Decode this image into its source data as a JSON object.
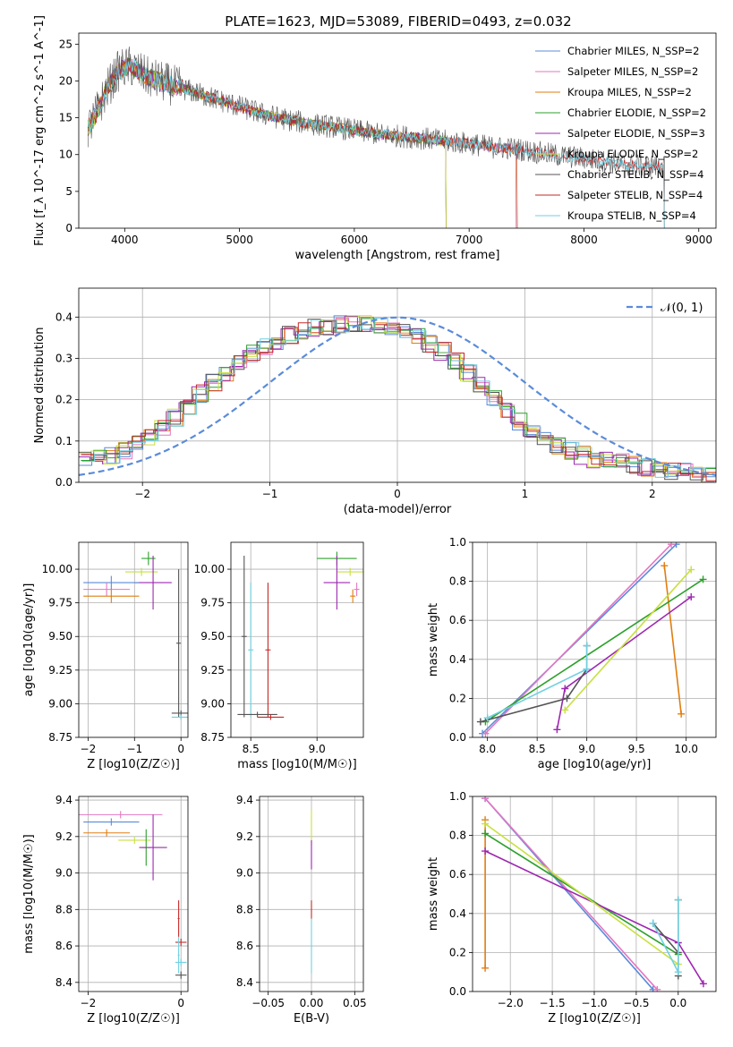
{
  "figure": {
    "title": "PLATE=1623, MJD=53089, FIBERID=0493, z=0.032"
  },
  "chart_data": [
    {
      "id": "spectrum",
      "type": "line",
      "xlabel": "wavelength [Angstrom, rest frame]",
      "ylabel": "Flux [f_λ 10^-17 erg cm^-2 s^-1 A^-1]",
      "xlim": [
        3600,
        9150
      ],
      "ylim": [
        0,
        26.5
      ],
      "xticks": [
        4000,
        5000,
        6000,
        7000,
        8000,
        9000
      ],
      "yticks": [
        0,
        5,
        10,
        15,
        20,
        25
      ],
      "grid": false,
      "legend_position": "top-right",
      "series": [
        {
          "name": "Chabrier MILES, N_SSP=2",
          "color": "#5b8bd9",
          "x_range": [
            3680,
            7410
          ]
        },
        {
          "name": "Salpeter MILES, N_SSP=2",
          "color": "#e377c2",
          "x_range": [
            3680,
            7410
          ]
        },
        {
          "name": "Kroupa MILES, N_SSP=2",
          "color": "#e07d10",
          "x_range": [
            3680,
            7420
          ]
        },
        {
          "name": "Chabrier ELODIE, N_SSP=2",
          "color": "#2ca02c",
          "x_range": [
            3680,
            6800
          ]
        },
        {
          "name": "Salpeter ELODIE, N_SSP=3",
          "color": "#9d27b0",
          "x_range": [
            3680,
            6800
          ]
        },
        {
          "name": "Kroupa ELODIE, N_SSP=2",
          "color": "#c8e040",
          "x_range": [
            3680,
            6800
          ]
        },
        {
          "name": "Chabrier STELIB, N_SSP=4",
          "color": "#555555",
          "x_range": [
            3680,
            8700
          ]
        },
        {
          "name": "Salpeter STELIB, N_SSP=4",
          "color": "#c62828",
          "x_range": [
            3680,
            8700
          ]
        },
        {
          "name": "Kroupa STELIB, N_SSP=4",
          "color": "#6fd0e0",
          "x_range": [
            3680,
            8700
          ]
        }
      ],
      "continuum": {
        "x": [
          3680,
          3750,
          3850,
          3950,
          4050,
          4200,
          4400,
          4600,
          4800,
          5000,
          5200,
          5400,
          5600,
          5800,
          6000,
          6200,
          6400,
          6600,
          6800,
          7000,
          7200,
          7400,
          7600,
          7800,
          8000,
          8200,
          8400,
          8700
        ],
        "y": [
          13.5,
          15.5,
          19.0,
          21.5,
          22.0,
          20.5,
          19.5,
          18.5,
          17.5,
          16.5,
          15.5,
          14.8,
          14.2,
          13.8,
          13.3,
          12.8,
          12.5,
          12.2,
          11.8,
          11.5,
          11.0,
          10.8,
          10.3,
          9.8,
          9.5,
          9.0,
          8.6,
          8.4
        ]
      }
    },
    {
      "id": "residuals",
      "type": "line",
      "xlabel": "(data-model)/error",
      "ylabel": "Normed distribution",
      "xlim": [
        -2.5,
        2.5
      ],
      "ylim": [
        0,
        0.47
      ],
      "xticks": [
        -2,
        -1,
        0,
        1,
        2
      ],
      "yticks": [
        0.0,
        0.1,
        0.2,
        0.3,
        0.4
      ],
      "grid": true,
      "legend_position": "top-right",
      "reference": {
        "name": "𝒩(0, 1)",
        "mean": 0,
        "sigma": 1,
        "color": "#5b8bd9"
      },
      "histogram_envelope": {
        "x": [
          -2.5,
          -2.3,
          -2.1,
          -1.9,
          -1.7,
          -1.5,
          -1.3,
          -1.1,
          -0.9,
          -0.7,
          -0.5,
          -0.3,
          -0.1,
          0.1,
          0.3,
          0.5,
          0.7,
          0.9,
          1.1,
          1.3,
          1.5,
          1.7,
          1.9,
          2.1,
          2.3,
          2.5
        ],
        "y": [
          0.05,
          0.06,
          0.08,
          0.12,
          0.17,
          0.23,
          0.28,
          0.32,
          0.35,
          0.37,
          0.38,
          0.385,
          0.38,
          0.36,
          0.33,
          0.28,
          0.22,
          0.16,
          0.11,
          0.08,
          0.06,
          0.05,
          0.04,
          0.03,
          0.025,
          0.02
        ]
      },
      "series_colors": [
        "#5b8bd9",
        "#e377c2",
        "#e07d10",
        "#2ca02c",
        "#9d27b0",
        "#c8e040",
        "#555555",
        "#c62828",
        "#6fd0e0"
      ]
    },
    {
      "id": "age-vs-Z",
      "type": "scatter",
      "xlabel": "Z [log10(Z/Z☉)]",
      "ylabel": "age  [log10(age/yr)]",
      "xlim": [
        -2.2,
        0.15
      ],
      "ylim": [
        8.75,
        10.2
      ],
      "xticks": [
        -2,
        -1,
        0
      ],
      "yticks": [
        8.75,
        9.0,
        9.25,
        9.5,
        9.75,
        10.0
      ],
      "grid": true,
      "points": [
        {
          "x": -0.7,
          "y": 10.08,
          "xerr": 0.15,
          "yerr": 0.05,
          "color": "#2ca02c"
        },
        {
          "x": -0.85,
          "y": 9.98,
          "xerr": 0.35,
          "yerr": 0.03,
          "color": "#c8e040"
        },
        {
          "x": -0.6,
          "y": 9.9,
          "xerr": 0.4,
          "yerr": 0.2,
          "color": "#9d27b0"
        },
        {
          "x": -1.5,
          "y": 9.9,
          "xerr": 0.6,
          "yerr": 0.05,
          "color": "#5b8bd9"
        },
        {
          "x": -1.6,
          "y": 9.85,
          "xerr": 0.5,
          "yerr": 0.05,
          "color": "#e377c2"
        },
        {
          "x": -1.5,
          "y": 9.8,
          "xerr": 0.6,
          "yerr": 0.05,
          "color": "#e07d10"
        },
        {
          "x": -0.05,
          "y": 9.45,
          "xerr": 0.05,
          "yerr": 0.55,
          "color": "#555555"
        },
        {
          "x": 0.0,
          "y": 8.93,
          "xerr": 0.2,
          "yerr": 0.02,
          "color": "#555555"
        },
        {
          "x": 0.0,
          "y": 8.9,
          "xerr": 0.2,
          "yerr": 0.02,
          "color": "#6fd0e0"
        }
      ]
    },
    {
      "id": "age-vs-mass",
      "type": "scatter",
      "xlabel": "mass [log10(M/M☉)]",
      "ylabel": "",
      "xlim": [
        8.35,
        9.35
      ],
      "ylim": [
        8.75,
        10.2
      ],
      "xticks": [
        8.5,
        9.0
      ],
      "yticks": [
        8.75,
        9.0,
        9.25,
        9.5,
        9.75,
        10.0
      ],
      "grid": true,
      "points": [
        {
          "x": 9.15,
          "y": 10.08,
          "xerr": 0.15,
          "yerr": 0.05,
          "color": "#2ca02c"
        },
        {
          "x": 9.25,
          "y": 9.98,
          "xerr": 0.1,
          "yerr": 0.03,
          "color": "#c8e040"
        },
        {
          "x": 9.15,
          "y": 9.9,
          "xerr": 0.1,
          "yerr": 0.2,
          "color": "#9d27b0"
        },
        {
          "x": 9.27,
          "y": 9.8,
          "xerr": 0.02,
          "yerr": 0.05,
          "color": "#e07d10"
        },
        {
          "x": 9.3,
          "y": 9.85,
          "xerr": 0.02,
          "yerr": 0.05,
          "color": "#e377c2"
        },
        {
          "x": 8.45,
          "y": 9.5,
          "xerr": 0.02,
          "yerr": 0.6,
          "color": "#555555"
        },
        {
          "x": 8.5,
          "y": 9.4,
          "xerr": 0.02,
          "yerr": 0.5,
          "color": "#6fd0e0"
        },
        {
          "x": 8.63,
          "y": 9.4,
          "xerr": 0.02,
          "yerr": 0.5,
          "color": "#c62828"
        },
        {
          "x": 8.55,
          "y": 8.92,
          "xerr": 0.15,
          "yerr": 0.02,
          "color": "#555555"
        },
        {
          "x": 8.65,
          "y": 8.9,
          "xerr": 0.1,
          "yerr": 0.02,
          "color": "#c62828"
        }
      ]
    },
    {
      "id": "weight-vs-age",
      "type": "line",
      "xlabel": "age  [log10(age/yr)]",
      "ylabel": "mass weight",
      "xlim": [
        7.85,
        10.3
      ],
      "ylim": [
        0,
        1
      ],
      "xticks": [
        8.0,
        8.5,
        9.0,
        9.5,
        10.0
      ],
      "yticks": [
        0.0,
        0.2,
        0.4,
        0.6,
        0.8,
        1.0
      ],
      "grid": true,
      "series": [
        {
          "color": "#5b8bd9",
          "x": [
            7.95,
            9.9
          ],
          "y": [
            0.02,
            0.99
          ]
        },
        {
          "color": "#e377c2",
          "x": [
            7.98,
            9.85
          ],
          "y": [
            0.02,
            0.99
          ]
        },
        {
          "color": "#e07d10",
          "x": [
            9.78,
            9.95
          ],
          "y": [
            0.88,
            0.12
          ]
        },
        {
          "color": "#2ca02c",
          "x": [
            7.98,
            10.17
          ],
          "y": [
            0.08,
            0.81
          ]
        },
        {
          "color": "#9d27b0",
          "x": [
            8.7,
            8.78,
            10.05
          ],
          "y": [
            0.04,
            0.25,
            0.72
          ]
        },
        {
          "color": "#c8e040",
          "x": [
            8.78,
            10.05
          ],
          "y": [
            0.14,
            0.86
          ]
        },
        {
          "color": "#555555",
          "x": [
            7.93,
            8.8,
            9.0,
            9.0
          ],
          "y": [
            0.08,
            0.2,
            0.35,
            0.47
          ]
        },
        {
          "color": "#6fd0e0",
          "x": [
            8.0,
            9.0,
            9.0
          ],
          "y": [
            0.1,
            0.35,
            0.47
          ]
        }
      ]
    },
    {
      "id": "mass-vs-Z",
      "type": "scatter",
      "xlabel": "Z [log10(Z/Z☉)]",
      "ylabel": "mass [log10(M/M☉)]",
      "xlim": [
        -2.2,
        0.15
      ],
      "ylim": [
        8.35,
        9.42
      ],
      "xticks": [
        -2,
        0
      ],
      "yticks": [
        8.4,
        8.6,
        8.8,
        9.0,
        9.2,
        9.4
      ],
      "grid": true,
      "points": [
        {
          "x": -1.3,
          "y": 9.32,
          "xerr": 0.9,
          "yerr": 0.02,
          "color": "#e377c2"
        },
        {
          "x": -1.5,
          "y": 9.28,
          "xerr": 0.6,
          "yerr": 0.02,
          "color": "#5b8bd9"
        },
        {
          "x": -1.6,
          "y": 9.22,
          "xerr": 0.5,
          "yerr": 0.02,
          "color": "#e07d10"
        },
        {
          "x": -1.0,
          "y": 9.18,
          "xerr": 0.35,
          "yerr": 0.02,
          "color": "#c8e040"
        },
        {
          "x": -0.75,
          "y": 9.14,
          "xerr": 0.1,
          "yerr": 0.1,
          "color": "#2ca02c"
        },
        {
          "x": -0.6,
          "y": 9.14,
          "xerr": 0.3,
          "yerr": 0.18,
          "color": "#9d27b0"
        },
        {
          "x": -0.05,
          "y": 8.75,
          "xerr": 0.02,
          "yerr": 0.1,
          "color": "#c62828"
        },
        {
          "x": 0.0,
          "y": 8.62,
          "xerr": 0.12,
          "yerr": 0.02,
          "color": "#c62828"
        },
        {
          "x": -0.05,
          "y": 8.55,
          "xerr": 0.02,
          "yerr": 0.1,
          "color": "#6fd0e0"
        },
        {
          "x": 0.0,
          "y": 8.51,
          "xerr": 0.12,
          "yerr": 0.02,
          "color": "#6fd0e0"
        },
        {
          "x": 0.0,
          "y": 8.44,
          "xerr": 0.12,
          "yerr": 0.02,
          "color": "#555555"
        }
      ]
    },
    {
      "id": "mass-vs-EBV",
      "type": "scatter",
      "xlabel": "E(B-V)",
      "ylabel": "",
      "xlim": [
        -0.06,
        0.06
      ],
      "ylim": [
        8.35,
        9.42
      ],
      "xticks": [
        -0.05,
        0.0,
        0.05
      ],
      "yticks": [
        8.4,
        8.6,
        8.8,
        9.0,
        9.2,
        9.4
      ],
      "grid": true,
      "points": [
        {
          "x": 0.0,
          "y": 9.25,
          "xerr": 0,
          "yerr": 0.1,
          "color": "#c8e040"
        },
        {
          "x": 0.0,
          "y": 9.1,
          "xerr": 0,
          "yerr": 0.08,
          "color": "#9d27b0"
        },
        {
          "x": 0.0,
          "y": 8.8,
          "xerr": 0,
          "yerr": 0.05,
          "color": "#c62828"
        },
        {
          "x": 0.0,
          "y": 8.6,
          "xerr": 0,
          "yerr": 0.15,
          "color": "#6fd0e0"
        }
      ]
    },
    {
      "id": "weight-vs-Z",
      "type": "line",
      "xlabel": "Z [log10(Z/Z☉)]",
      "ylabel": "mass weight",
      "xlim": [
        -2.45,
        0.45
      ],
      "ylim": [
        0,
        1
      ],
      "xticks": [
        -2.0,
        -1.5,
        -1.0,
        -0.5,
        0.0
      ],
      "yticks": [
        0.0,
        0.2,
        0.4,
        0.6,
        0.8,
        1.0
      ],
      "grid": true,
      "series": [
        {
          "color": "#5b8bd9",
          "x": [
            -2.3,
            -0.3
          ],
          "y": [
            0.99,
            0.01
          ]
        },
        {
          "color": "#e377c2",
          "x": [
            -2.3,
            -0.25
          ],
          "y": [
            0.99,
            0.01
          ]
        },
        {
          "color": "#e07d10",
          "x": [
            -2.3,
            -2.3
          ],
          "y": [
            0.88,
            0.12
          ]
        },
        {
          "color": "#2ca02c",
          "x": [
            -2.3,
            0.0
          ],
          "y": [
            0.81,
            0.19
          ]
        },
        {
          "color": "#9d27b0",
          "x": [
            -2.3,
            0.0,
            0.3
          ],
          "y": [
            0.72,
            0.25,
            0.04
          ]
        },
        {
          "color": "#c8e040",
          "x": [
            -2.3,
            0.0
          ],
          "y": [
            0.86,
            0.14
          ]
        },
        {
          "color": "#555555",
          "x": [
            -0.3,
            0.0,
            0.0,
            0.0
          ],
          "y": [
            0.35,
            0.2,
            0.08,
            0.47
          ]
        },
        {
          "color": "#6fd0e0",
          "x": [
            -0.3,
            0.0,
            0.0
          ],
          "y": [
            0.35,
            0.1,
            0.47
          ]
        }
      ]
    }
  ]
}
